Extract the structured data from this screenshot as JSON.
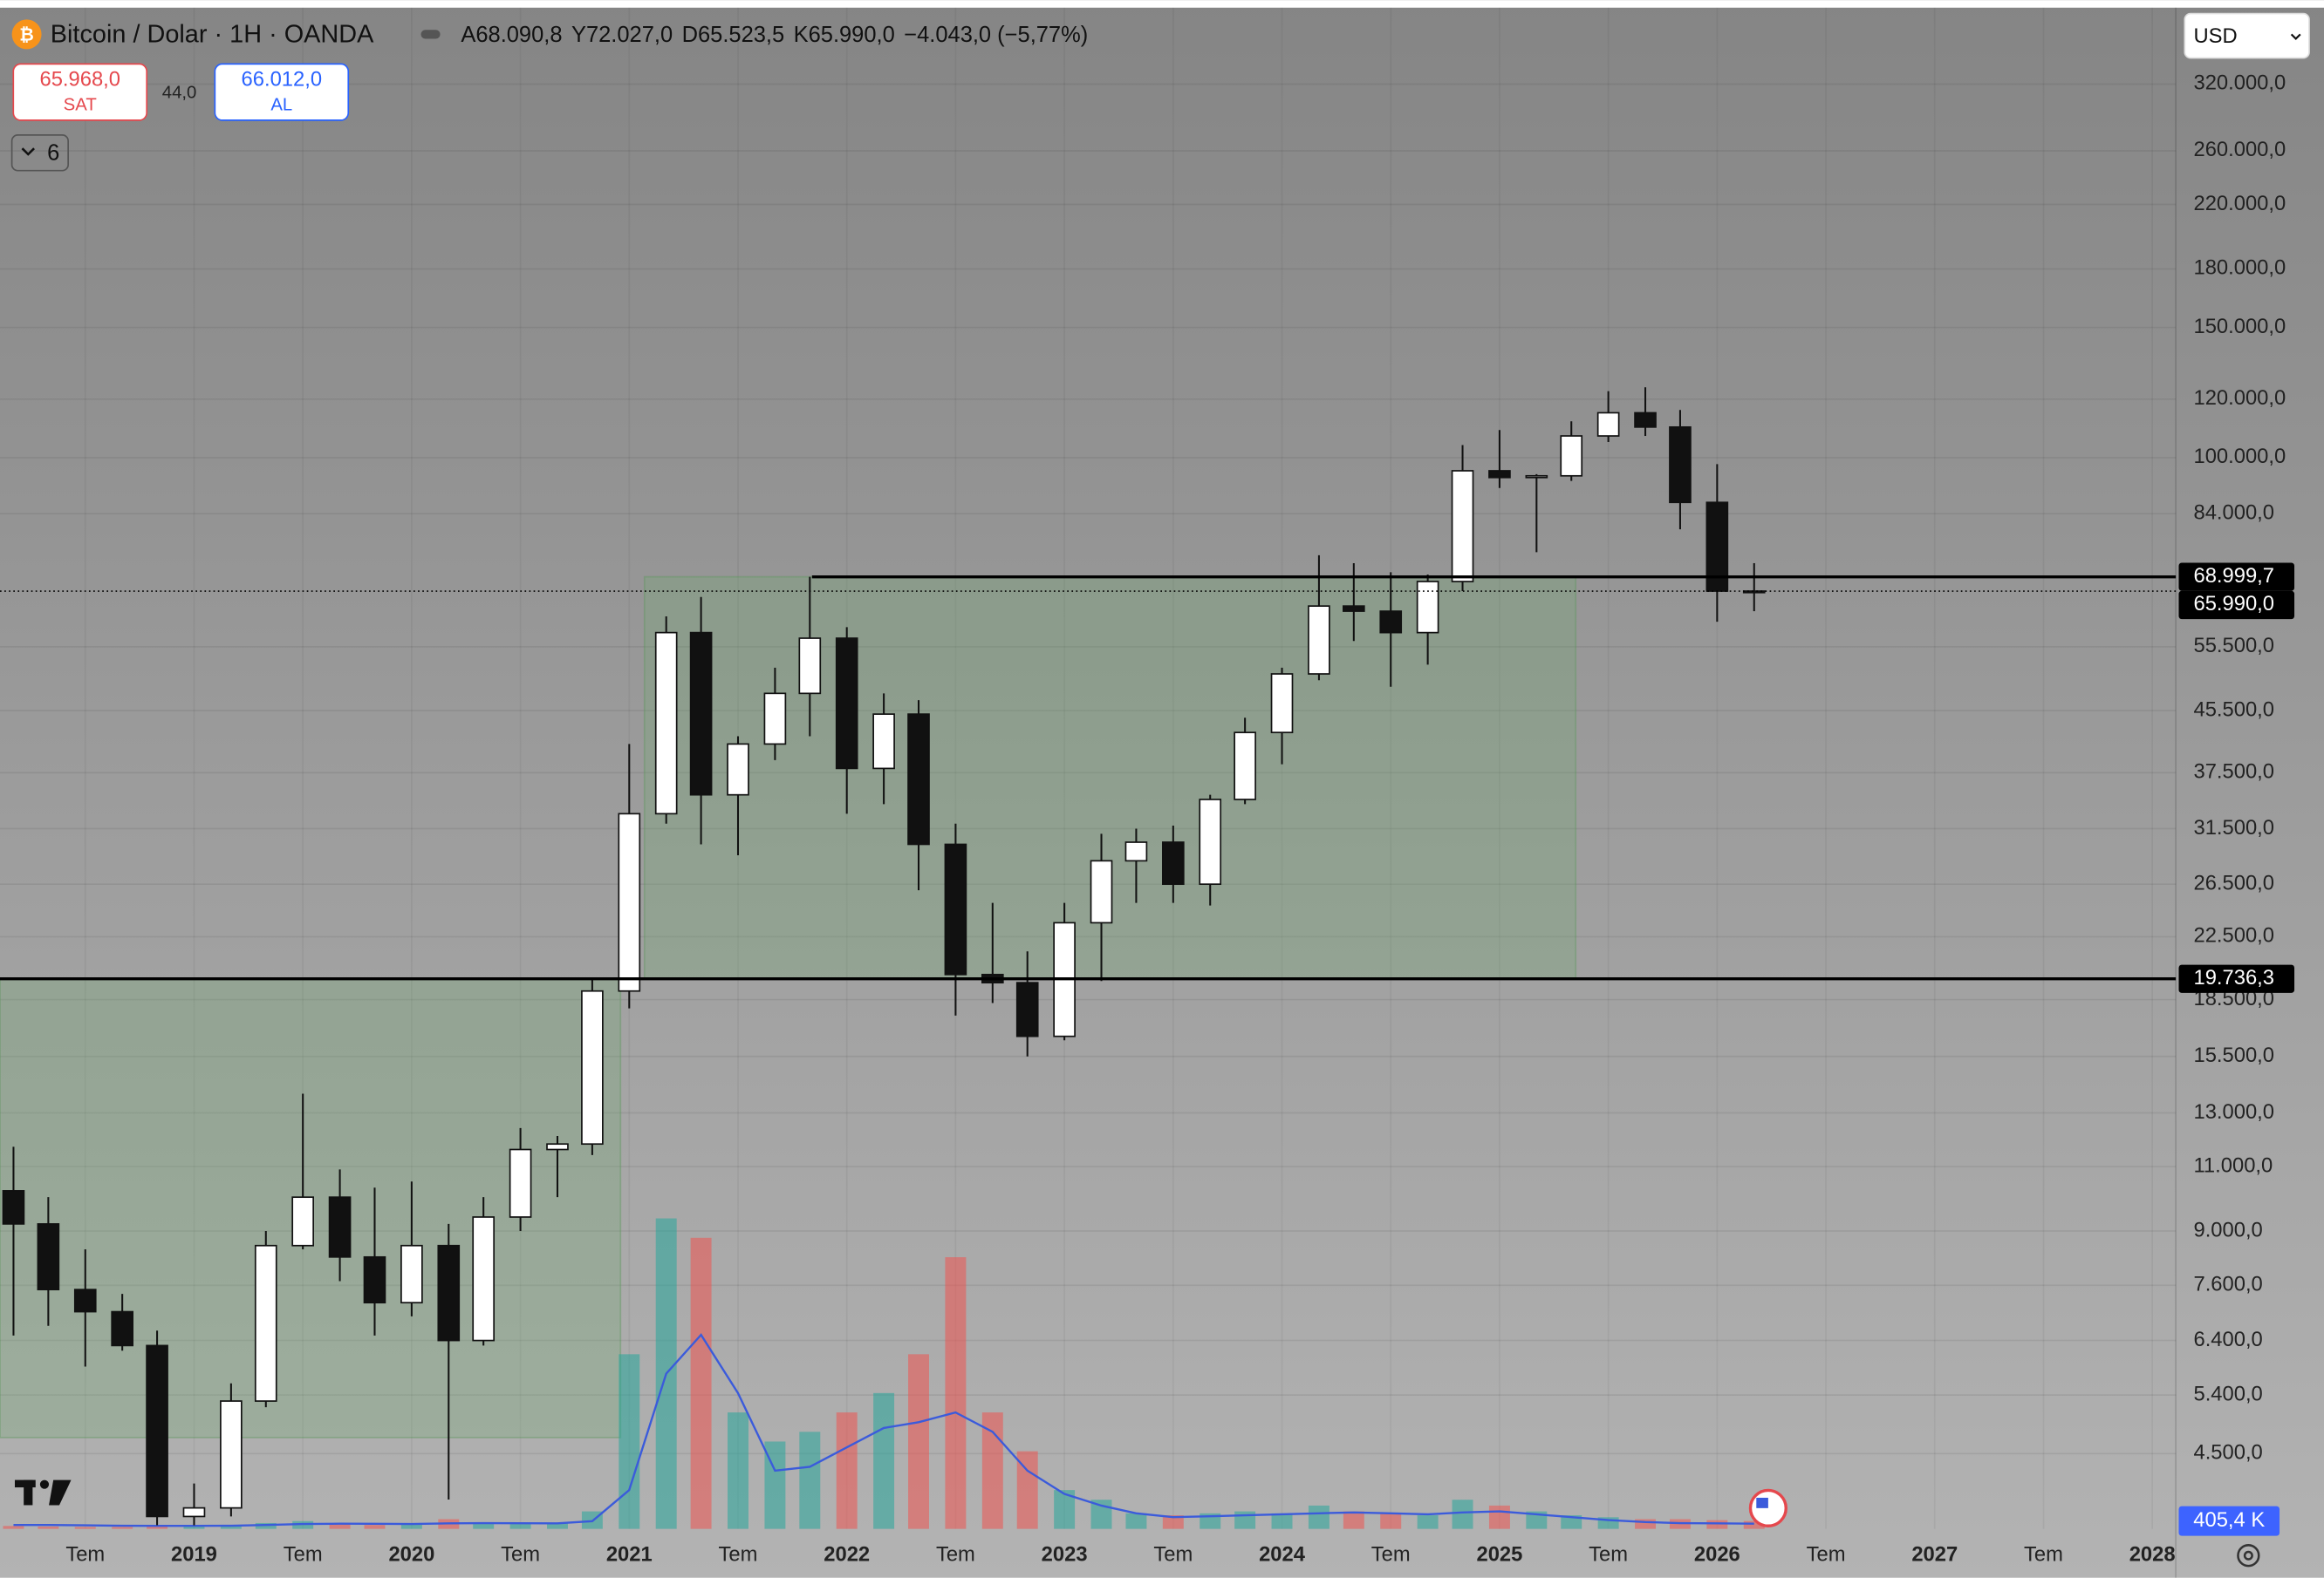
{
  "header": {
    "ohlc": [
      "A68.090,8",
      "Y72.027,0",
      "D65.523,5",
      "K65.990,0"
    ],
    "change": "−4.043,0 (−5,77%)",
    "sell_price": "65.968,0",
    "sell": "SAT",
    "spread": "44,0",
    "buy_price": "66.012,0",
    "buy": "AL",
    "indicators": "6",
    "currency": "USD"
  },
  "chart_data": {
    "type": "candlestick",
    "title": "Bitcoin / Dolar · 1H · OANDA",
    "log_scale": true,
    "grid": true,
    "up_color": "#ffffff",
    "down_color": "#111111",
    "x": [
      2018.17,
      2018.33,
      2018.5,
      2018.67,
      2018.83,
      2019.0,
      2019.17,
      2019.33,
      2019.5,
      2019.67,
      2019.83,
      2020.0,
      2020.17,
      2020.33,
      2020.5,
      2020.67,
      2020.83,
      2021.0,
      2021.17,
      2021.33,
      2021.5,
      2021.67,
      2021.83,
      2022.0,
      2022.17,
      2022.33,
      2022.5,
      2022.67,
      2022.83,
      2023.0,
      2023.17,
      2023.33,
      2023.5,
      2023.67,
      2023.83,
      2024.0,
      2024.17,
      2024.33,
      2024.5,
      2024.67,
      2024.83,
      2025.0,
      2025.17,
      2025.33,
      2025.5,
      2025.67,
      2025.83,
      2026.0,
      2026.17
    ],
    "open": [
      10200,
      9200,
      7500,
      7000,
      6300,
      3700,
      3800,
      5300,
      8600,
      10000,
      8300,
      7200,
      8600,
      6400,
      9400,
      11600,
      11800,
      19000,
      33000,
      58000,
      35000,
      41000,
      48000,
      57000,
      38000,
      45000,
      30000,
      20000,
      19500,
      16500,
      23500,
      28500,
      30200,
      26500,
      34500,
      42500,
      51000,
      63000,
      62000,
      58000,
      68000,
      96000,
      94000,
      94500,
      107000,
      115000,
      110000,
      87000,
      66000
    ],
    "high": [
      11700,
      10000,
      8500,
      7400,
      6600,
      4100,
      5600,
      9000,
      13800,
      10900,
      10300,
      10500,
      9200,
      10000,
      12400,
      12100,
      19800,
      41000,
      61000,
      64800,
      42000,
      52000,
      69000,
      59000,
      48000,
      47000,
      32000,
      25000,
      21500,
      25000,
      31000,
      31500,
      31800,
      35000,
      44500,
      52000,
      73800,
      72000,
      70000,
      69500,
      104000,
      109000,
      95000,
      112000,
      123000,
      124500,
      116000,
      98000,
      72000
    ],
    "low": [
      6500,
      6700,
      5900,
      6200,
      3600,
      3600,
      3700,
      5200,
      8500,
      7700,
      6500,
      6900,
      3900,
      6300,
      9000,
      10000,
      11400,
      18000,
      32000,
      30000,
      29000,
      39000,
      42000,
      33000,
      34000,
      26000,
      17600,
      18300,
      15500,
      16300,
      19600,
      25000,
      25000,
      24800,
      34000,
      38500,
      50000,
      56500,
      49000,
      52500,
      66000,
      91000,
      74500,
      93000,
      105000,
      107000,
      80000,
      60000,
      62000
    ],
    "close": [
      9200,
      7500,
      7000,
      6300,
      3700,
      3800,
      5300,
      8600,
      10000,
      8300,
      7200,
      8600,
      6400,
      9400,
      11600,
      11800,
      19000,
      33000,
      58000,
      35000,
      41000,
      48000,
      57000,
      38000,
      45000,
      30000,
      20000,
      19500,
      16500,
      23500,
      28500,
      30200,
      26500,
      34500,
      42500,
      51000,
      63000,
      62000,
      58000,
      68000,
      96000,
      94000,
      94500,
      107000,
      115000,
      110000,
      87000,
      66000,
      65990
    ],
    "volume": {
      "up_color": "rgba(38,166,154,0.55)",
      "down_color": "rgba(239,83,80,0.55)",
      "ma_color": "#3b5bdb",
      "lim": [
        0,
        20000000
      ],
      "values": [
        150000,
        120000,
        100000,
        100000,
        150000,
        120000,
        180000,
        300000,
        400000,
        250000,
        200000,
        250000,
        500000,
        300000,
        250000,
        300000,
        900000,
        9000000,
        16000000,
        15000000,
        6000000,
        4500000,
        5000000,
        6000000,
        7000000,
        9000000,
        14000000,
        6000000,
        4000000,
        2000000,
        1500000,
        800000,
        700000,
        800000,
        900000,
        800000,
        1200000,
        900000,
        800000,
        700000,
        1500000,
        1200000,
        900000,
        700000,
        600000,
        500000,
        500000,
        450000,
        405400
      ],
      "ma": [
        200000,
        200000,
        180000,
        160000,
        150000,
        150000,
        160000,
        200000,
        250000,
        270000,
        260000,
        250000,
        280000,
        300000,
        290000,
        280000,
        400000,
        2000000,
        8000000,
        10000000,
        7000000,
        3000000,
        3200000,
        4200000,
        5200000,
        5500000,
        6000000,
        5000000,
        3000000,
        1800000,
        1200000,
        800000,
        600000,
        650000,
        700000,
        750000,
        800000,
        850000,
        800000,
        750000,
        850000,
        900000,
        750000,
        600000,
        450000,
        350000,
        300000,
        280000,
        270000
      ],
      "last": {
        "value": 405400,
        "label": "405,4 K"
      }
    },
    "levels": [
      {
        "value": 68999.7,
        "label": "68.999,7",
        "x0": 2021.84
      },
      {
        "value": 65990,
        "label": "65.990,0",
        "style": "dotted"
      },
      {
        "value": 19736.3,
        "label": "19.736,3"
      }
    ],
    "zones": [
      {
        "x": [
          2018.108,
          2020.96
        ],
        "y": [
          4730,
          19736.3
        ]
      },
      {
        "x": [
          2021.07,
          2025.35
        ],
        "y": [
          19736.3,
          68999.7
        ]
      }
    ],
    "xlim": [
      2018.108,
      2028.108
    ],
    "xticks": [
      {
        "value": 2018.5,
        "label": "Tem"
      },
      2019,
      {
        "value": 2019.5,
        "label": "Tem"
      },
      2020,
      {
        "value": 2020.5,
        "label": "Tem"
      },
      2021,
      {
        "value": 2021.5,
        "label": "Tem"
      },
      2022,
      {
        "value": 2022.5,
        "label": "Tem"
      },
      2023,
      {
        "value": 2023.5,
        "label": "Tem"
      },
      2024,
      {
        "value": 2024.5,
        "label": "Tem"
      },
      2025,
      {
        "value": 2025.5,
        "label": "Tem"
      },
      2026,
      {
        "value": 2026.5,
        "label": "Tem"
      },
      2027,
      {
        "value": 2027.5,
        "label": "Tem"
      },
      2028
    ],
    "ylim": [
      3560,
      406000
    ],
    "yticks": [
      {
        "value": 320000,
        "label": "320.000,0"
      },
      {
        "value": 260000,
        "label": "260.000,0"
      },
      {
        "value": 220000,
        "label": "220.000,0"
      },
      {
        "value": 180000,
        "label": "180.000,0"
      },
      {
        "value": 150000,
        "label": "150.000,0"
      },
      {
        "value": 120000,
        "label": "120.000,0"
      },
      {
        "value": 100000,
        "label": "100.000,0"
      },
      {
        "value": 84000,
        "label": "84.000,0"
      },
      {
        "value": 55500,
        "label": "55.500,0"
      },
      {
        "value": 45500,
        "label": "45.500,0"
      },
      {
        "value": 37500,
        "label": "37.500,0"
      },
      {
        "value": 31500,
        "label": "31.500,0"
      },
      {
        "value": 26500,
        "label": "26.500,0"
      },
      {
        "value": 22500,
        "label": "22.500,0"
      },
      {
        "value": 18500,
        "label": "18.500,0"
      },
      {
        "value": 15500,
        "label": "15.500,0"
      },
      {
        "value": 13000,
        "label": "13.000,0"
      },
      {
        "value": 11000,
        "label": "11.000,0"
      },
      {
        "value": 9000,
        "label": "9.000,0"
      },
      {
        "value": 7600,
        "label": "7.600,0"
      },
      {
        "value": 6400,
        "label": "6.400,0"
      },
      {
        "value": 5400,
        "label": "5.400,0"
      },
      {
        "value": 4500,
        "label": "4.500,0"
      }
    ]
  }
}
